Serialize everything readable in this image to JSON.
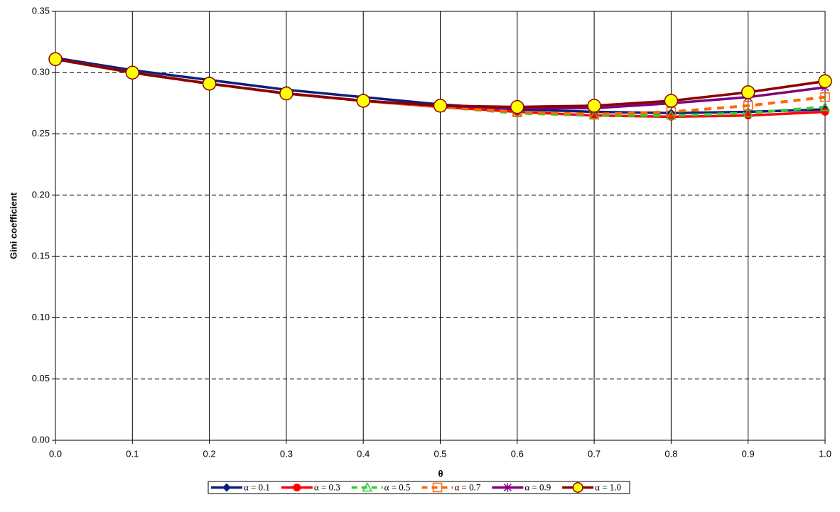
{
  "chart_data": {
    "type": "line",
    "x_label": "θ",
    "y_label": "Gini coefficient",
    "x": [
      0,
      0.1,
      0.2,
      0.3,
      0.4,
      0.5,
      0.6,
      0.7,
      0.8,
      0.9,
      1
    ],
    "xlim": [
      0,
      1
    ],
    "xticks": [
      {
        "value": 0,
        "label": "0.0"
      },
      0.1,
      0.2,
      0.3,
      0.4,
      0.5,
      0.6,
      0.7,
      0.8,
      0.9,
      {
        "value": 1,
        "label": "1.0"
      }
    ],
    "ylim": [
      0,
      0.35
    ],
    "yticks": [
      {
        "value": 0,
        "label": "0.00"
      },
      0.05,
      {
        "value": 0.1,
        "label": "0.10"
      },
      0.15,
      {
        "value": 0.2,
        "label": "0.20"
      },
      0.25,
      {
        "value": 0.3,
        "label": "0.30"
      },
      0.35
    ],
    "grid": true,
    "legend": "bottom",
    "series": [
      {
        "name": "α = 0.1",
        "color": "#0d1f7a",
        "marker": "diamond",
        "dash": false,
        "values": [
          0.312,
          0.302,
          0.294,
          0.286,
          0.28,
          0.274,
          0.27,
          0.268,
          0.267,
          0.268,
          0.27
        ]
      },
      {
        "name": "α = 0.3",
        "color": "#ff0000",
        "marker": "circle",
        "dash": false,
        "values": [
          0.311,
          0.3,
          0.291,
          0.283,
          0.277,
          0.272,
          0.268,
          0.265,
          0.264,
          0.265,
          0.268
        ]
      },
      {
        "name": "α = 0.5",
        "color": "#33cc33",
        "marker": "triangle",
        "dash": true,
        "values": [
          0.311,
          0.3,
          0.291,
          0.283,
          0.277,
          0.272,
          0.267,
          0.265,
          0.265,
          0.267,
          0.272
        ]
      },
      {
        "name": "α = 0.7",
        "color": "#ff6600",
        "marker": "square",
        "dash": true,
        "values": [
          0.311,
          0.3,
          0.291,
          0.283,
          0.277,
          0.272,
          0.268,
          0.266,
          0.268,
          0.273,
          0.28
        ]
      },
      {
        "name": "α = 0.9",
        "color": "#800080",
        "marker": "star",
        "dash": false,
        "values": [
          0.311,
          0.3,
          0.291,
          0.283,
          0.277,
          0.273,
          0.271,
          0.271,
          0.275,
          0.28,
          0.288
        ]
      },
      {
        "name": "α = 1.0",
        "color": "#8b0000",
        "marker": "bigcircle",
        "dash": false,
        "values": [
          0.311,
          0.3,
          0.291,
          0.283,
          0.277,
          0.273,
          0.272,
          0.273,
          0.277,
          0.284,
          0.293
        ]
      }
    ]
  }
}
